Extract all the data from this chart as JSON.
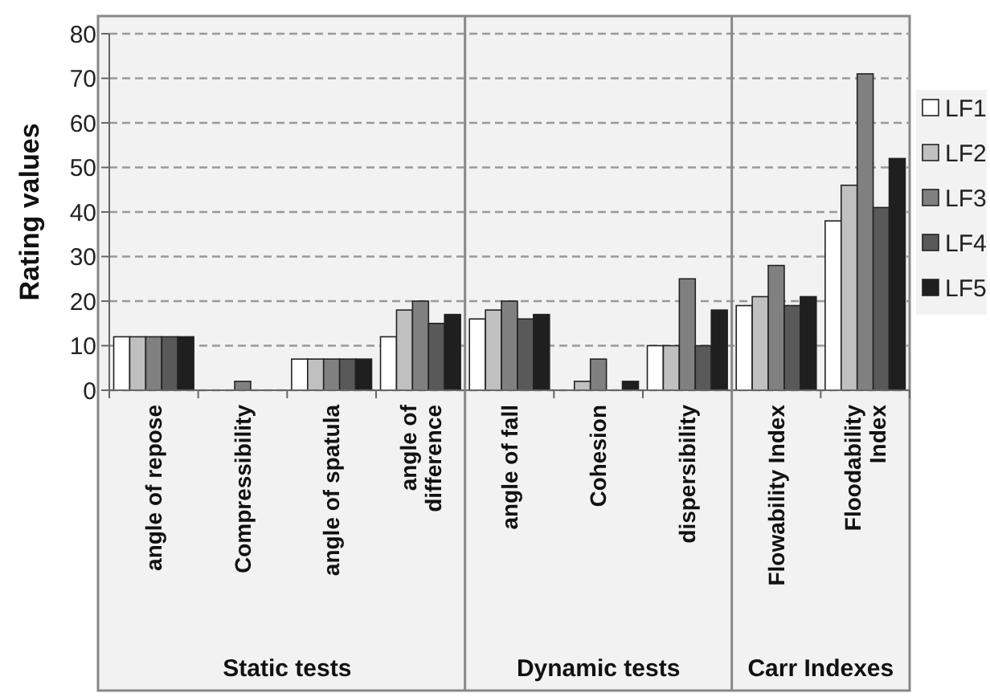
{
  "chart_data": {
    "type": "bar",
    "ylabel": "Rating values",
    "categories": [
      "angle of repose",
      "Compressibility",
      "angle of spatula",
      "angle of\ndifference",
      "angle of fall",
      "Cohesion",
      "dispersibility",
      "Flowability Index",
      "Floodability\nIndex"
    ],
    "series": [
      {
        "name": "LF1",
        "color": "#ffffff",
        "values": [
          12,
          0,
          7,
          12,
          16,
          0,
          10,
          19,
          38
        ]
      },
      {
        "name": "LF2",
        "color": "#c0c0c0",
        "values": [
          12,
          0,
          7,
          18,
          18,
          2,
          10,
          21,
          46
        ]
      },
      {
        "name": "LF3",
        "color": "#808080",
        "values": [
          12,
          2,
          7,
          20,
          20,
          7,
          25,
          28,
          71
        ]
      },
      {
        "name": "LF4",
        "color": "#595959",
        "values": [
          12,
          0,
          7,
          15,
          16,
          0,
          10,
          19,
          41
        ]
      },
      {
        "name": "LF5",
        "color": "#1f1f1f",
        "values": [
          12,
          0,
          7,
          17,
          17,
          2,
          18,
          21,
          52
        ]
      }
    ],
    "ylim": [
      0,
      80
    ],
    "yticks": [
      0,
      10,
      20,
      30,
      40,
      50,
      60,
      70,
      80
    ],
    "grid": "y",
    "legend": "right",
    "annotations": [
      "Static tests",
      "Dynamic tests",
      "Carr Indexes"
    ]
  }
}
